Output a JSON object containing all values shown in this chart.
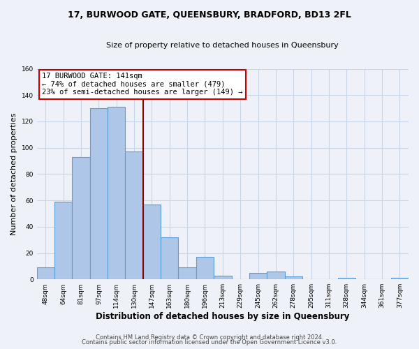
{
  "title": "17, BURWOOD GATE, QUEENSBURY, BRADFORD, BD13 2FL",
  "subtitle": "Size of property relative to detached houses in Queensbury",
  "xlabel": "Distribution of detached houses by size in Queensbury",
  "ylabel": "Number of detached properties",
  "footer_lines": [
    "Contains HM Land Registry data © Crown copyright and database right 2024.",
    "Contains public sector information licensed under the Open Government Licence v3.0."
  ],
  "bin_labels": [
    "48sqm",
    "64sqm",
    "81sqm",
    "97sqm",
    "114sqm",
    "130sqm",
    "147sqm",
    "163sqm",
    "180sqm",
    "196sqm",
    "213sqm",
    "229sqm",
    "245sqm",
    "262sqm",
    "278sqm",
    "295sqm",
    "311sqm",
    "328sqm",
    "344sqm",
    "361sqm",
    "377sqm"
  ],
  "bar_values": [
    9,
    59,
    93,
    130,
    131,
    97,
    57,
    32,
    9,
    17,
    3,
    0,
    5,
    6,
    2,
    0,
    0,
    1,
    0,
    0,
    1
  ],
  "bar_color": "#aec6e8",
  "bar_edge_color": "#5a9fd4",
  "vline_color": "#8b0000",
  "vline_label": "17 BURWOOD GATE: 141sqm",
  "annotation_line1": "← 74% of detached houses are smaller (479)",
  "annotation_line2": "23% of semi-detached houses are larger (149) →",
  "annotation_box_edge": "#cc0000",
  "annotation_bg": "#ffffff",
  "ylim": [
    0,
    160
  ],
  "yticks": [
    0,
    20,
    40,
    60,
    80,
    100,
    120,
    140,
    160
  ],
  "grid_color": "#c8d4e8",
  "background_color": "#eef2f8"
}
